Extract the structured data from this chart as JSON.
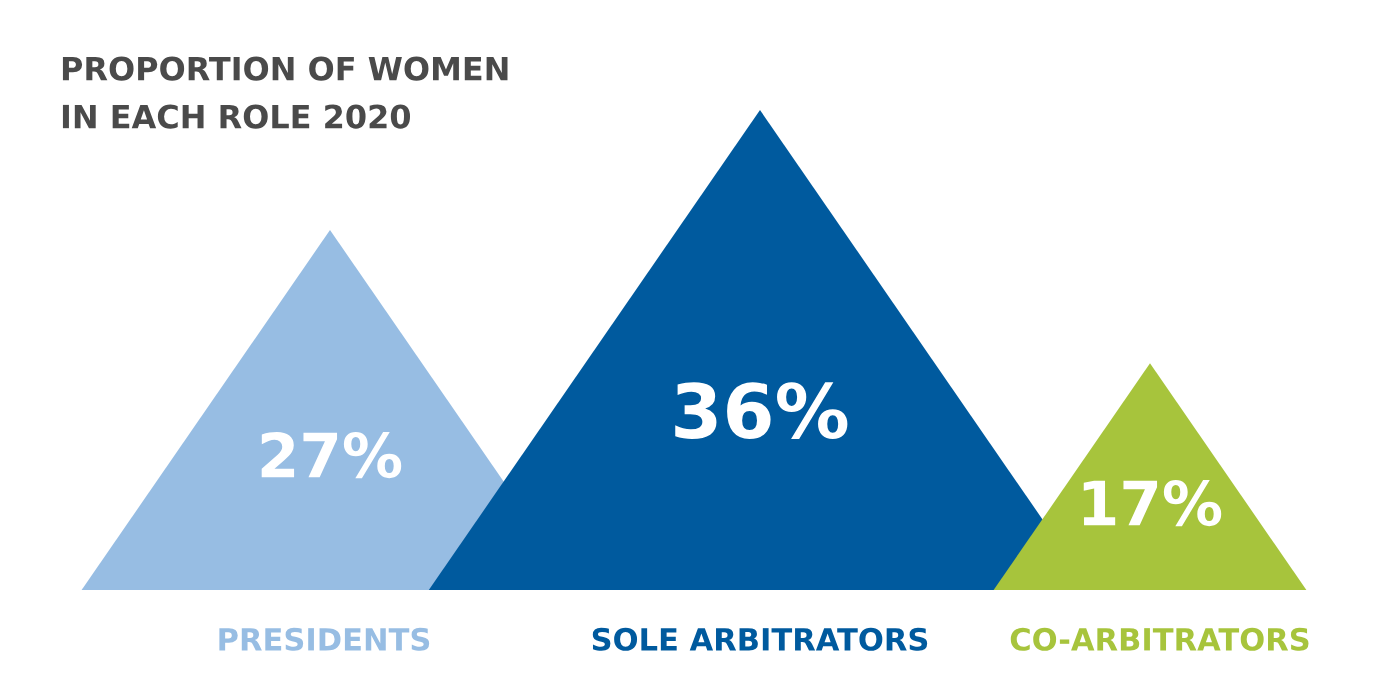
{
  "chart_data": {
    "type": "other",
    "title": "PROPORTION OF WOMEN\nIN EACH ROLE 2020",
    "categories": [
      "PRESIDENTS",
      "SOLE ARBITRATORS",
      "CO-ARBITRATORS"
    ],
    "values": [
      27,
      36,
      17
    ],
    "colors": [
      "#97bde3",
      "#005a9e",
      "#a7c43c"
    ],
    "value_labels": [
      "27%",
      "36%",
      "17%"
    ]
  }
}
